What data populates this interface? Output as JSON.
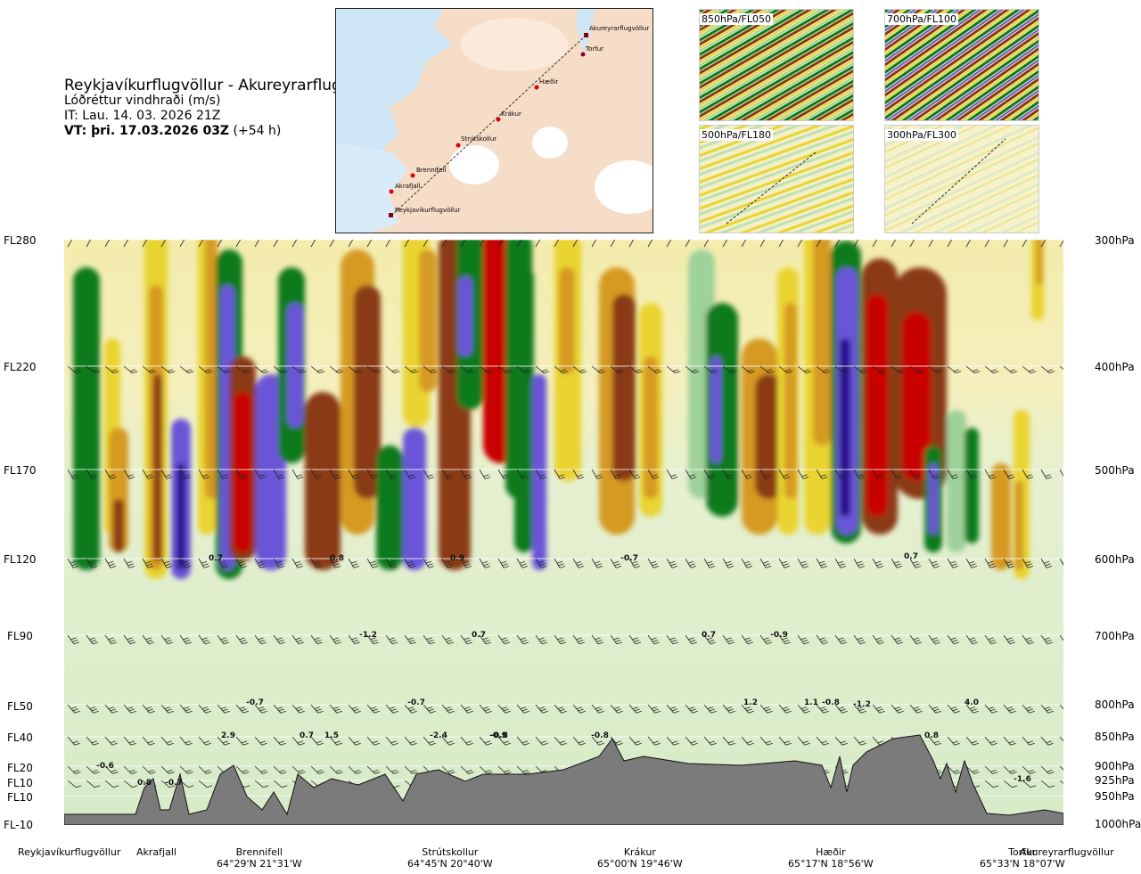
{
  "header": {
    "route": "Reykjavíkurflugvöllur - Akureyrarflugvöllur",
    "variable": "Lóðréttur vindhraði (m/s)",
    "issue_time": "IT: Lau. 14. 03. 2026 21Z",
    "valid_label": "VT: þri. 17.03.2026 03Z",
    "valid_offset": "(+54 h)"
  },
  "map": {
    "places": [
      "Akureyrarflugvöllur",
      "Torfur",
      "Hæðir",
      "Krákur",
      "Strútskollur",
      "Brennifell",
      "Akrafjall",
      "Reykjavíkurflugvöllur"
    ]
  },
  "thumbnails": [
    {
      "label": "850hPa/FL050"
    },
    {
      "label": "700hPa/FL100"
    },
    {
      "label": "500hPa/FL180"
    },
    {
      "label": "300hPa/FL300"
    }
  ],
  "left_levels": [
    "FL280",
    "FL220",
    "FL170",
    "FL120",
    "FL90",
    "FL50",
    "FL40",
    "FL20",
    "FL10",
    "FL10",
    "FL-10"
  ],
  "right_levels": [
    "300hPa",
    "400hPa",
    "500hPa",
    "600hPa",
    "700hPa",
    "800hPa",
    "850hPa",
    "900hPa",
    "925hPa",
    "950hPa",
    "1000hPa"
  ],
  "waypoints": [
    {
      "name": "Reykjavíkurflugvöllur",
      "coord": ""
    },
    {
      "name": "Akrafjall",
      "coord": ""
    },
    {
      "name": "Brennifell",
      "coord": "64°29'N 21°31'W"
    },
    {
      "name": "Strútskollur",
      "coord": "64°45'N 20°40'W"
    },
    {
      "name": "Krákur",
      "coord": "65°00'N 19°46'W"
    },
    {
      "name": "Hæðir",
      "coord": "65°17'N 18°56'W"
    },
    {
      "name": "Torfur",
      "coord": "65°33'N 18°07'W"
    },
    {
      "name": "Akureyrarflugvöllur",
      "coord": ""
    }
  ],
  "contour_values": [
    "0.7",
    "0.8",
    "0.9",
    "-0.7",
    "0.7",
    "0.7",
    "-0.9",
    "-1.2",
    "0.7",
    "-0.7",
    "-0.7",
    "1.2",
    "1.1",
    "-0.8",
    "-1.2",
    "4.0",
    "2.9",
    "0.7",
    "-2.4",
    "-0.9",
    "-0.8",
    "0.8",
    "-0.6",
    "0.8",
    "-0.7",
    "-1.6",
    "1.5",
    "-0.8"
  ],
  "chart_data": {
    "type": "heatmap",
    "title": "Reykjavíkurflugvöllur - Akureyrarflugvöllur",
    "ylabel": "",
    "xlabel": "",
    "y_left_ticks": [
      "FL280",
      "FL220",
      "FL170",
      "FL120",
      "FL90",
      "FL50",
      "FL40",
      "FL20",
      "FL10",
      "FL10",
      "FL-10"
    ],
    "y_right_ticks": [
      "300hPa",
      "400hPa",
      "500hPa",
      "600hPa",
      "700hPa",
      "800hPa",
      "850hPa",
      "900hPa",
      "925hPa",
      "950hPa",
      "1000hPa"
    ],
    "x_ticks": [
      "Reykjavíkurflugvöllur",
      "Akrafjall",
      "Brennifell",
      "Strútskollur",
      "Krákur",
      "Hæðir",
      "Torfur",
      "Akureyrarflugvöllur"
    ],
    "colors": {
      "strong_up": "#2a0a8c",
      "up": "#6a55d8",
      "mod_up": "#0b7a1e",
      "weak_up": "#9fd19a",
      "neutral": "#f4f2c8",
      "weak_down": "#e9d432",
      "mod_down": "#d69a22",
      "down": "#8a3a12",
      "strong_down": "#c80000",
      "terrain": "#7b7b7b"
    }
  }
}
